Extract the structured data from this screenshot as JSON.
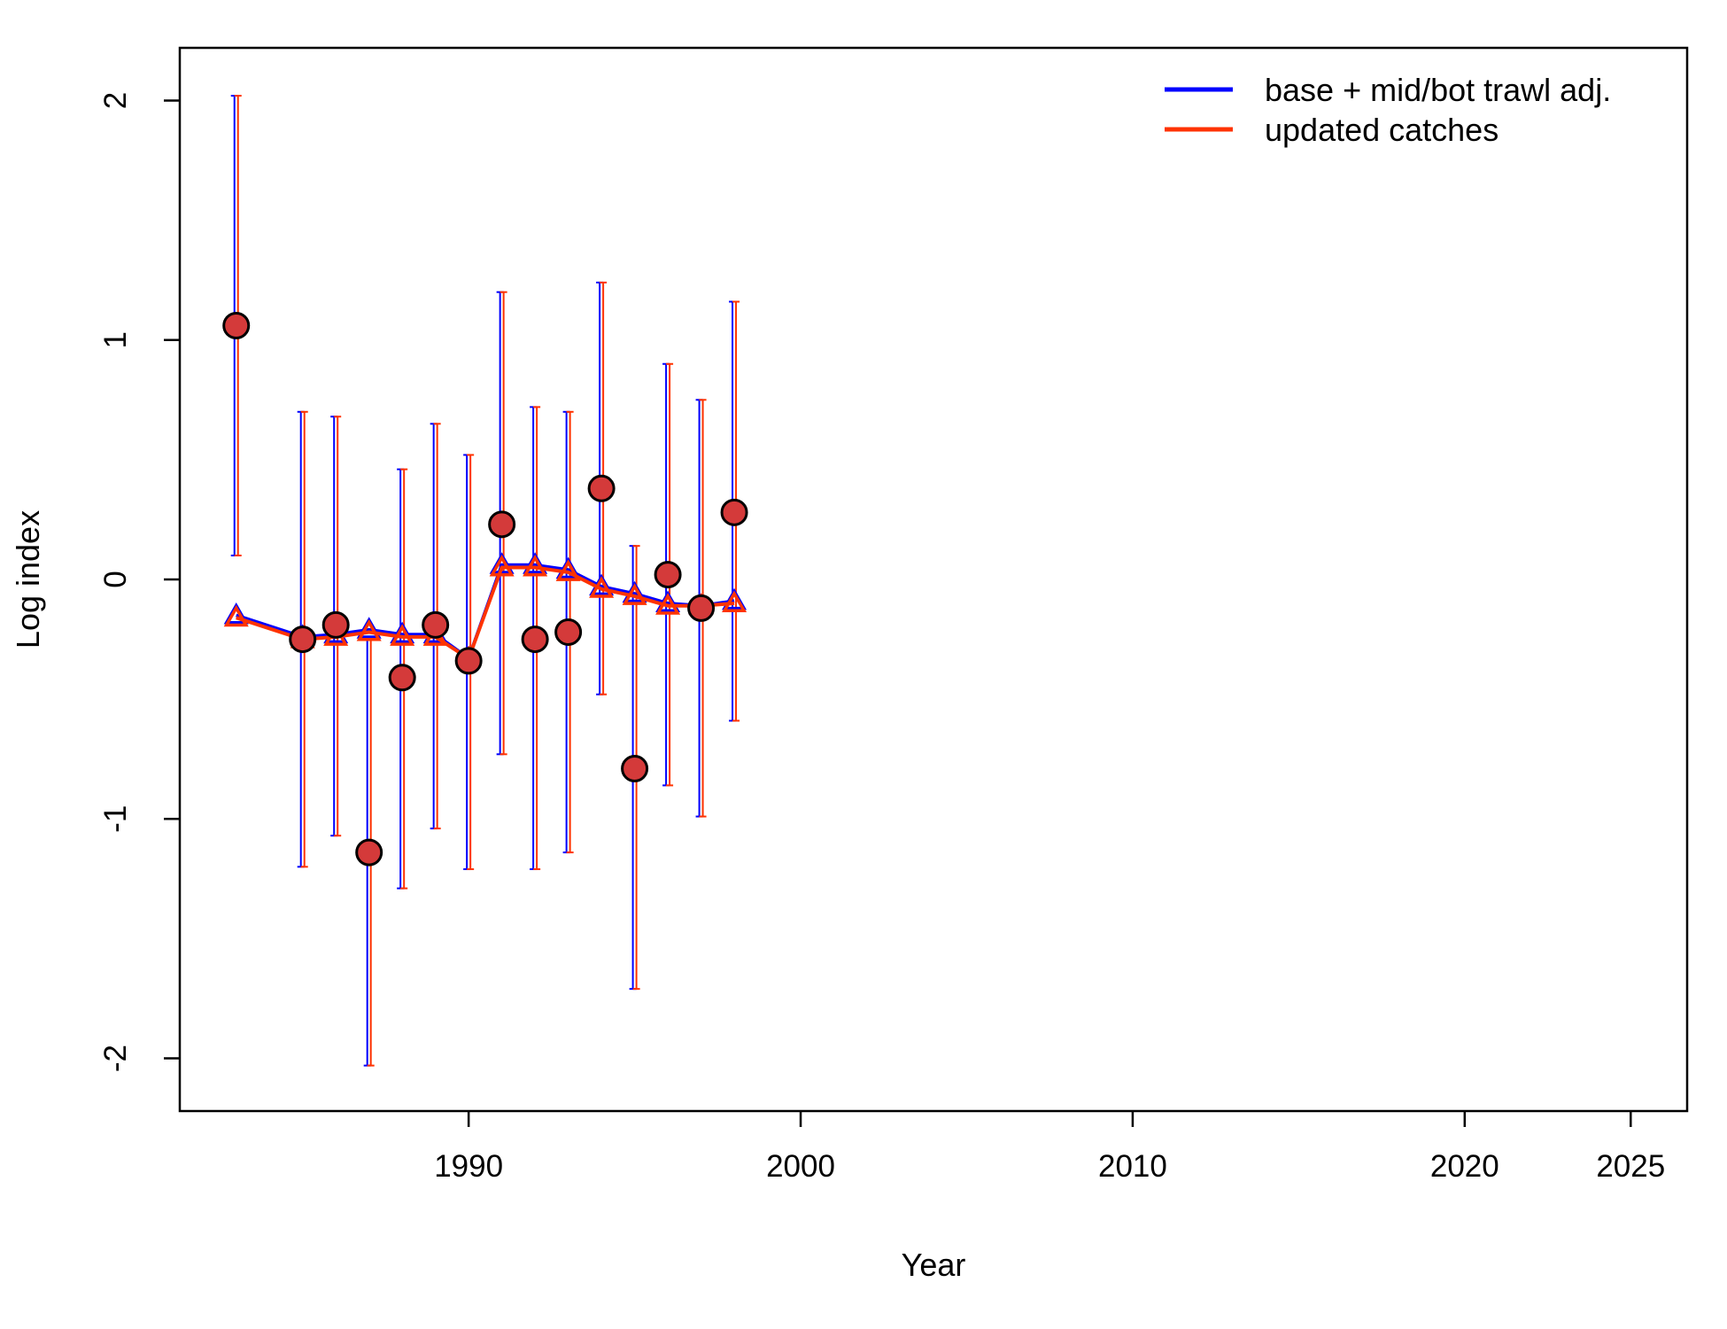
{
  "chart_data": {
    "type": "scatter",
    "xlabel": "Year",
    "ylabel": "Log index",
    "xlim": [
      1981.3,
      2026.7
    ],
    "ylim": [
      -2.22,
      2.22
    ],
    "x_ticks": [
      1990,
      2000,
      2010,
      2020,
      2025
    ],
    "y_ticks": [
      -2,
      -1,
      0,
      1,
      2
    ],
    "grid": false,
    "legend_position": "top-right",
    "observed": {
      "x": [
        1983,
        1985,
        1986,
        1987,
        1988,
        1989,
        1990,
        1991,
        1992,
        1993,
        1994,
        1995,
        1996,
        1997,
        1998
      ],
      "y": [
        1.06,
        -0.25,
        -0.19,
        -1.14,
        -0.41,
        -0.19,
        -0.34,
        0.23,
        -0.25,
        -0.22,
        0.38,
        -0.79,
        0.02,
        -0.12,
        0.28
      ],
      "lower": [
        0.1,
        -1.2,
        -1.07,
        -2.03,
        -1.29,
        -1.04,
        -1.21,
        -0.73,
        -1.21,
        -1.14,
        -0.48,
        -1.71,
        -0.86,
        -0.99,
        -0.59
      ],
      "upper": [
        2.02,
        0.7,
        0.68,
        -0.25,
        0.46,
        0.65,
        0.52,
        1.2,
        0.72,
        0.7,
        1.24,
        0.14,
        0.9,
        0.75,
        1.16
      ],
      "point_color": "#d43a3a"
    },
    "series": [
      {
        "name": "base + mid/bot trawl adj.",
        "color": "#0000ff",
        "x": [
          1983,
          1985,
          1986,
          1987,
          1988,
          1989,
          1990,
          1991,
          1992,
          1993,
          1994,
          1995,
          1996,
          1997,
          1998
        ],
        "values": [
          -0.15,
          -0.24,
          -0.23,
          -0.21,
          -0.23,
          -0.23,
          -0.33,
          0.06,
          0.06,
          0.04,
          -0.03,
          -0.06,
          -0.1,
          -0.11,
          -0.09
        ]
      },
      {
        "name": "updated catches",
        "color": "#ff3300",
        "x": [
          1983,
          1985,
          1986,
          1987,
          1988,
          1989,
          1990,
          1991,
          1992,
          1993,
          1994,
          1995,
          1996,
          1997,
          1998
        ],
        "values": [
          -0.16,
          -0.25,
          -0.24,
          -0.22,
          -0.24,
          -0.24,
          -0.33,
          0.05,
          0.05,
          0.03,
          -0.04,
          -0.07,
          -0.11,
          -0.11,
          -0.1
        ]
      }
    ]
  }
}
